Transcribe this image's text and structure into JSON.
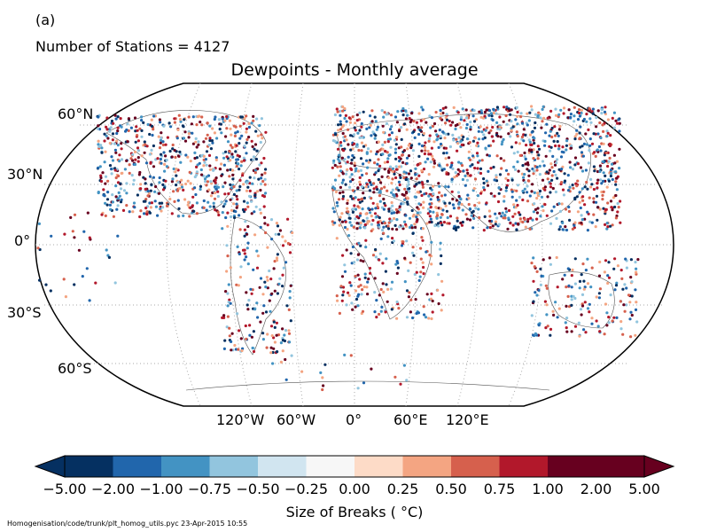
{
  "panel_label": "(a)",
  "stations_text": "Number of Stations = 4127",
  "title": "Dewpoints - Monthly average",
  "lat_labels": [
    "60°N",
    "30°N",
    "0°",
    "30°S",
    "60°S"
  ],
  "lon_labels": [
    "120°W",
    "60°W",
    "0°",
    "60°E",
    "120°E"
  ],
  "colorbar": {
    "label": "Size of Breaks ( °C)",
    "ticks": [
      "−5.00",
      "−2.00",
      "−1.00",
      "−0.75",
      "−0.50",
      "−0.25",
      "0.00",
      "0.25",
      "0.50",
      "0.75",
      "1.00",
      "2.00",
      "5.00"
    ],
    "colors": [
      "#053061",
      "#2166ac",
      "#4393c3",
      "#92c5de",
      "#d1e5f0",
      "#f7f7f7",
      "#fddbc7",
      "#f4a582",
      "#d6604d",
      "#b2182b",
      "#67001f",
      "#67001f"
    ]
  },
  "footer": "Homogenisation/code/trunk/plt_homog_utils.pyc   23-Apr-2015 10:55",
  "station_colors": [
    "#053061",
    "#2166ac",
    "#4393c3",
    "#92c5de",
    "#f4a582",
    "#d6604d",
    "#b2182b",
    "#67001f"
  ]
}
